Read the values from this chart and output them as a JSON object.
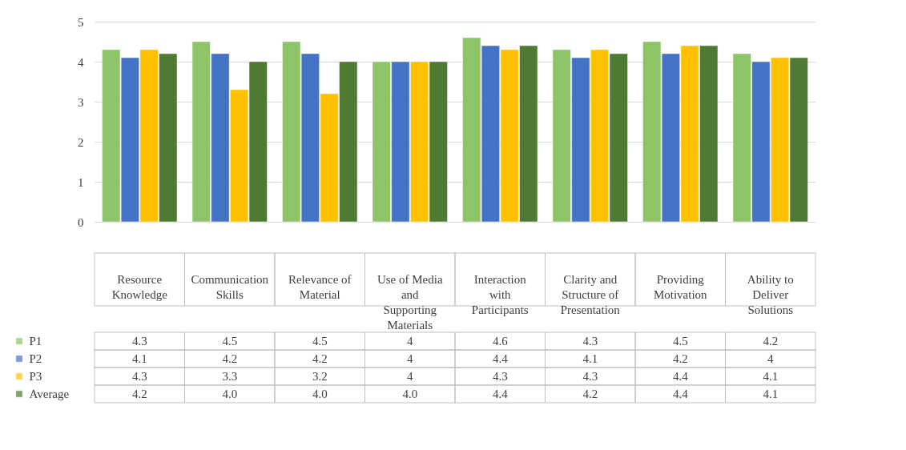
{
  "chart_data": {
    "type": "bar",
    "categories": [
      "Resource Knowledge",
      "Communication Skills",
      "Relevance of Material",
      "Use of Media and Supporting Materials",
      "Interaction with Participants",
      "Clarity and Structure of Presentation",
      "Providing Motivation",
      "Ability to Deliver Solutions"
    ],
    "series": [
      {
        "name": "P1",
        "color": "#8cc467",
        "values": [
          4.3,
          4.5,
          4.5,
          4,
          4.6,
          4.3,
          4.5,
          4.2
        ],
        "value_labels": [
          "4.3",
          "4.5",
          "4.5",
          "4",
          "4.6",
          "4.3",
          "4.5",
          "4.2"
        ]
      },
      {
        "name": "P2",
        "color": "#4472c4",
        "values": [
          4.1,
          4.2,
          4.2,
          4,
          4.4,
          4.1,
          4.2,
          4
        ],
        "value_labels": [
          "4.1",
          "4.2",
          "4.2",
          "4",
          "4.4",
          "4.1",
          "4.2",
          "4"
        ]
      },
      {
        "name": "P3",
        "color": "#ffc000",
        "values": [
          4.3,
          3.3,
          3.2,
          4,
          4.3,
          4.3,
          4.4,
          4.1
        ],
        "value_labels": [
          "4.3",
          "3.3",
          "3.2",
          "4",
          "4.3",
          "4.3",
          "4.4",
          "4.1"
        ]
      },
      {
        "name": "Average",
        "color": "#4f7a33",
        "values": [
          4.2,
          4.0,
          4.0,
          4.0,
          4.4,
          4.2,
          4.4,
          4.1
        ],
        "value_labels": [
          "4.2",
          "4.0",
          "4.0",
          "4.0",
          "4.4",
          "4.2",
          "4.4",
          "4.1"
        ]
      }
    ],
    "ylim": [
      0,
      5
    ],
    "yticks": [
      0,
      1,
      2,
      3,
      4,
      5
    ],
    "grid": "y",
    "legend": "bottom",
    "tick_labels": "y"
  }
}
